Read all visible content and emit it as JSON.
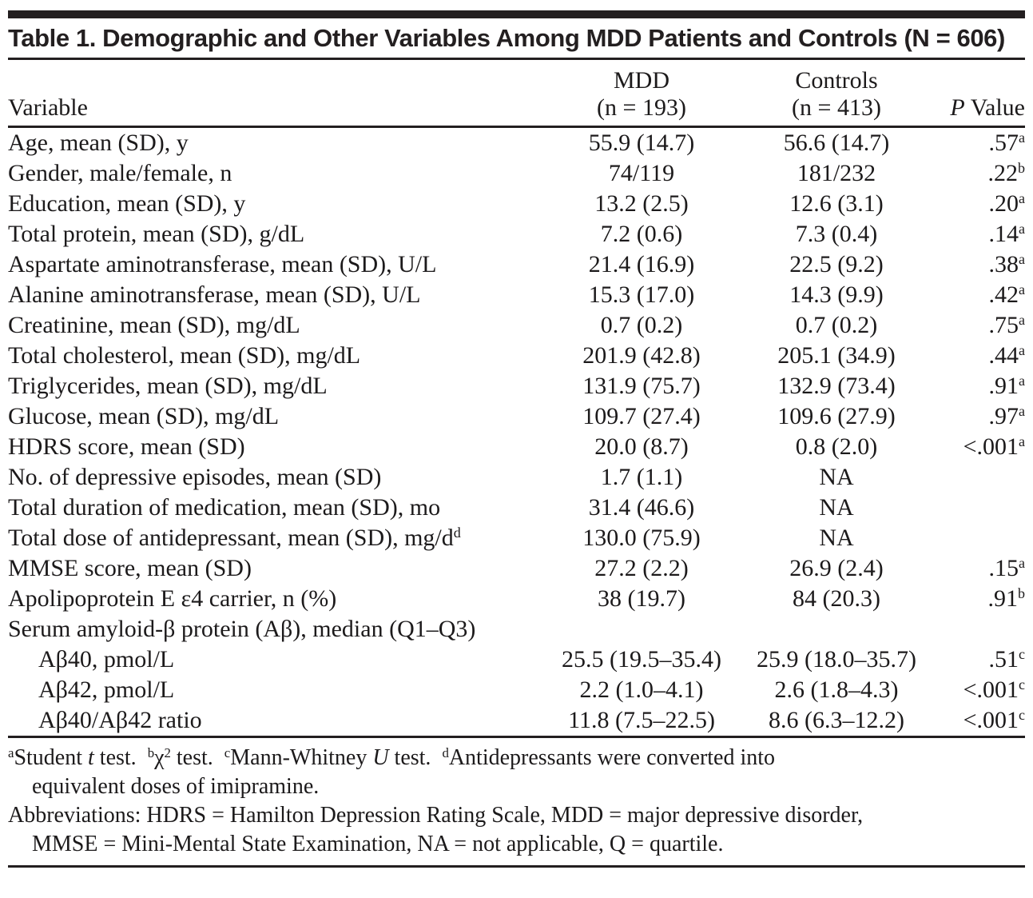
{
  "title": "Table 1. Demographic and Other Variables Among MDD Patients and Controls (N = 606)",
  "colors": {
    "ink": "#231f20",
    "background": "#ffffff"
  },
  "table": {
    "columns": {
      "variable": "Variable",
      "mdd_line1": "MDD",
      "mdd_line2": "(n = 193)",
      "controls_line1": "Controls",
      "controls_line2": "(n = 413)",
      "p_italic": "P",
      "p_rest": " Value"
    },
    "rows": [
      {
        "label": "Age, mean (SD), y",
        "label_sup": "",
        "indent": false,
        "mdd": "55.9 (14.7)",
        "controls": "56.6 (14.7)",
        "p": ".57",
        "p_sup": "a"
      },
      {
        "label": "Gender, male/female, n",
        "label_sup": "",
        "indent": false,
        "mdd": "74/119",
        "controls": "181/232",
        "p": ".22",
        "p_sup": "b"
      },
      {
        "label": "Education, mean (SD), y",
        "label_sup": "",
        "indent": false,
        "mdd": "13.2 (2.5)",
        "controls": "12.6 (3.1)",
        "p": ".20",
        "p_sup": "a"
      },
      {
        "label": "Total protein, mean (SD), g/dL",
        "label_sup": "",
        "indent": false,
        "mdd": "7.2 (0.6)",
        "controls": "7.3 (0.4)",
        "p": ".14",
        "p_sup": "a"
      },
      {
        "label": "Aspartate aminotransferase, mean (SD), U/L",
        "label_sup": "",
        "indent": false,
        "mdd": "21.4 (16.9)",
        "controls": "22.5 (9.2)",
        "p": ".38",
        "p_sup": "a"
      },
      {
        "label": "Alanine aminotransferase, mean (SD), U/L",
        "label_sup": "",
        "indent": false,
        "mdd": "15.3 (17.0)",
        "controls": "14.3 (9.9)",
        "p": ".42",
        "p_sup": "a"
      },
      {
        "label": "Creatinine, mean (SD), mg/dL",
        "label_sup": "",
        "indent": false,
        "mdd": "0.7 (0.2)",
        "controls": "0.7 (0.2)",
        "p": ".75",
        "p_sup": "a"
      },
      {
        "label": "Total cholesterol, mean (SD), mg/dL",
        "label_sup": "",
        "indent": false,
        "mdd": "201.9 (42.8)",
        "controls": "205.1 (34.9)",
        "p": ".44",
        "p_sup": "a"
      },
      {
        "label": "Triglycerides, mean (SD), mg/dL",
        "label_sup": "",
        "indent": false,
        "mdd": "131.9 (75.7)",
        "controls": "132.9 (73.4)",
        "p": ".91",
        "p_sup": "a"
      },
      {
        "label": "Glucose, mean (SD), mg/dL",
        "label_sup": "",
        "indent": false,
        "mdd": "109.7 (27.4)",
        "controls": "109.6 (27.9)",
        "p": ".97",
        "p_sup": "a"
      },
      {
        "label": "HDRS score, mean (SD)",
        "label_sup": "",
        "indent": false,
        "mdd": "20.0 (8.7)",
        "controls": "0.8 (2.0)",
        "p": "<.001",
        "p_sup": "a"
      },
      {
        "label": "No. of depressive episodes, mean (SD)",
        "label_sup": "",
        "indent": false,
        "mdd": "1.7 (1.1)",
        "controls": "NA",
        "p": "",
        "p_sup": ""
      },
      {
        "label": "Total duration of medication, mean (SD), mo",
        "label_sup": "",
        "indent": false,
        "mdd": "31.4 (46.6)",
        "controls": "NA",
        "p": "",
        "p_sup": ""
      },
      {
        "label": "Total dose of antidepressant, mean (SD), mg/d",
        "label_sup": "d",
        "indent": false,
        "mdd": "130.0 (75.9)",
        "controls": "NA",
        "p": "",
        "p_sup": ""
      },
      {
        "label": "MMSE score, mean (SD)",
        "label_sup": "",
        "indent": false,
        "mdd": "27.2 (2.2)",
        "controls": "26.9 (2.4)",
        "p": ".15",
        "p_sup": "a"
      },
      {
        "label": "Apolipoprotein E ε4 carrier, n (%)",
        "label_sup": "",
        "indent": false,
        "mdd": "38 (19.7)",
        "controls": "84 (20.3)",
        "p": ".91",
        "p_sup": "b"
      },
      {
        "label": "Serum amyloid-β protein (Aβ), median (Q1–Q3)",
        "label_sup": "",
        "indent": false,
        "mdd": "",
        "controls": "",
        "p": "",
        "p_sup": ""
      },
      {
        "label": "Aβ40, pmol/L",
        "label_sup": "",
        "indent": true,
        "mdd": "25.5 (19.5–35.4)",
        "controls": "25.9 (18.0–35.7)",
        "p": ".51",
        "p_sup": "c"
      },
      {
        "label": "Aβ42, pmol/L",
        "label_sup": "",
        "indent": true,
        "mdd": "2.2 (1.0–4.1)",
        "controls": "2.6 (1.8–4.3)",
        "p": "<.001",
        "p_sup": "c"
      },
      {
        "label": "Aβ40/Aβ42 ratio",
        "label_sup": "",
        "indent": true,
        "mdd": "11.8 (7.5–22.5)",
        "controls": "8.6 (6.3–12.2)",
        "p": "<.001",
        "p_sup": "c"
      }
    ]
  },
  "footnotes": {
    "stat_tests_segments": [
      {
        "s": "sup",
        "t": "a"
      },
      {
        "s": "n",
        "t": "Student "
      },
      {
        "s": "i",
        "t": "t"
      },
      {
        "s": "n",
        "t": " test.  "
      },
      {
        "s": "sup",
        "t": "b"
      },
      {
        "s": "n",
        "t": "χ"
      },
      {
        "s": "sup",
        "t": "2"
      },
      {
        "s": "n",
        "t": " test.  "
      },
      {
        "s": "sup",
        "t": "c"
      },
      {
        "s": "n",
        "t": "Mann-Whitney "
      },
      {
        "s": "i",
        "t": "U"
      },
      {
        "s": "n",
        "t": " test.  "
      },
      {
        "s": "sup",
        "t": "d"
      },
      {
        "s": "n",
        "t": "Antidepressants were converted into\nequivalent doses of imipramine."
      }
    ],
    "abbreviations": "Abbreviations: HDRS = Hamilton Depression Rating Scale, MDD = major depressive disorder,\nMMSE = Mini-Mental State Examination, NA = not applicable, Q = quartile."
  }
}
